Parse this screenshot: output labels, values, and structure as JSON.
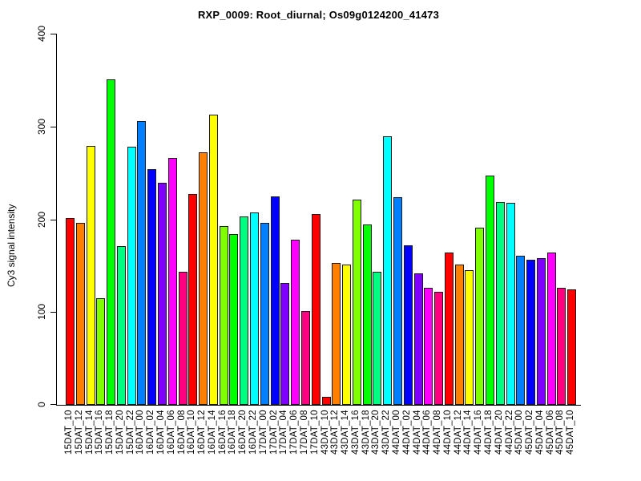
{
  "header": {
    "title": "RXP_0009: Root_diurnal; Os09g0124200_41473"
  },
  "chart_data": {
    "type": "bar",
    "title": "RXP_0009: Root_diurnal; Os09g0124200_41473",
    "xlabel": "",
    "ylabel": "Cy3 signal intensity",
    "ylim": [
      0,
      400
    ],
    "yticks": [
      0,
      100,
      200,
      300,
      400
    ],
    "grid": false,
    "legend_position": "none",
    "background_color": "#ffffff",
    "axis_color": "#000000",
    "bar_border_color": "#1a1a1a",
    "palette_rainbow12": [
      "#FF0000",
      "#FF8000",
      "#FFFF00",
      "#80FF00",
      "#00FF00",
      "#00FF80",
      "#00FFFF",
      "#0080FF",
      "#0000FF",
      "#8000FF",
      "#FF00FF",
      "#FF0080"
    ],
    "categories": [
      "15DAT_10",
      "15DAT_12",
      "15DAT_14",
      "15DAT_16",
      "15DAT_18",
      "15DAT_20",
      "15DAT_22",
      "16DAT_00",
      "16DAT_02",
      "16DAT_04",
      "16DAT_06",
      "16DAT_08",
      "16DAT_10",
      "16DAT_12",
      "16DAT_14",
      "16DAT_16",
      "16DAT_18",
      "16DAT_20",
      "16DAT_22",
      "17DAT_00",
      "17DAT_02",
      "17DAT_04",
      "17DAT_06",
      "17DAT_08",
      "17DAT_10",
      "43DAT_10",
      "43DAT_12",
      "43DAT_14",
      "43DAT_16",
      "43DAT_18",
      "43DAT_20",
      "43DAT_22",
      "44DAT_00",
      "44DAT_02",
      "44DAT_04",
      "44DAT_06",
      "44DAT_08",
      "44DAT_10",
      "44DAT_12",
      "44DAT_14",
      "44DAT_16",
      "44DAT_18",
      "44DAT_20",
      "44DAT_22",
      "45DAT_00",
      "45DAT_02",
      "45DAT_04",
      "45DAT_06",
      "45DAT_08",
      "45DAT_10"
    ],
    "values": [
      201,
      196,
      279,
      115,
      351,
      171,
      278,
      306,
      254,
      239,
      266,
      143,
      227,
      272,
      313,
      193,
      184,
      203,
      207,
      196,
      225,
      131,
      178,
      101,
      206,
      9,
      153,
      151,
      221,
      194,
      143,
      289,
      224,
      172,
      142,
      126,
      122,
      164,
      151,
      145,
      191,
      247,
      219,
      218,
      161,
      156,
      158,
      164,
      126,
      124
    ],
    "bar_colors": [
      "#FF0000",
      "#FF8000",
      "#FFFF00",
      "#80FF00",
      "#00FF00",
      "#00FF80",
      "#00FFFF",
      "#0080FF",
      "#0000FF",
      "#8000FF",
      "#FF00FF",
      "#FF0080",
      "#FF0000",
      "#FF8000",
      "#FFFF00",
      "#80FF00",
      "#00FF00",
      "#00FF80",
      "#00FFFF",
      "#0080FF",
      "#0000FF",
      "#8000FF",
      "#FF00FF",
      "#FF0080",
      "#FF0000",
      "#FF0000",
      "#FF8000",
      "#FFFF00",
      "#80FF00",
      "#00FF00",
      "#00FF80",
      "#00FFFF",
      "#0080FF",
      "#0000FF",
      "#8000FF",
      "#FF00FF",
      "#FF0080",
      "#FF0000",
      "#FF8000",
      "#FFFF00",
      "#80FF00",
      "#00FF00",
      "#00FF80",
      "#00FFFF",
      "#0080FF",
      "#0000FF",
      "#8000FF",
      "#FF00FF",
      "#FF0080",
      "#FF0000"
    ]
  }
}
